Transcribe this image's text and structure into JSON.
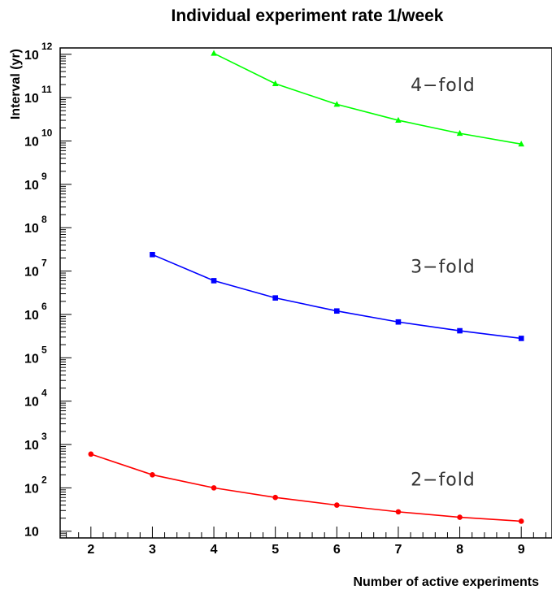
{
  "chart_data": {
    "type": "line",
    "title": "Individual experiment rate 1/week",
    "xlabel": "Number of active experiments",
    "ylabel": "Interval (yr)",
    "xlim": [
      1.5,
      9.5
    ],
    "ylim": [
      7,
      1400000000000.0
    ],
    "log_y": true,
    "x_ticks": [
      "2",
      "3",
      "4",
      "5",
      "6",
      "7",
      "8",
      "9"
    ],
    "y_ticks": [
      {
        "base": "10",
        "exp": ""
      },
      {
        "base": "10",
        "exp": "2"
      },
      {
        "base": "10",
        "exp": "3"
      },
      {
        "base": "10",
        "exp": "4"
      },
      {
        "base": "10",
        "exp": "5"
      },
      {
        "base": "10",
        "exp": "6"
      },
      {
        "base": "10",
        "exp": "7"
      },
      {
        "base": "10",
        "exp": "8"
      },
      {
        "base": "10",
        "exp": "9"
      },
      {
        "base": "10",
        "exp": "10"
      },
      {
        "base": "10",
        "exp": "11"
      },
      {
        "base": "10",
        "exp": "12"
      }
    ],
    "grid": false,
    "series": [
      {
        "color": "#ff0000",
        "marker": "circle",
        "x": [
          2,
          3,
          4,
          5,
          6,
          7,
          8,
          9
        ],
        "y": [
          600,
          200,
          100,
          60,
          40,
          28,
          21,
          17
        ]
      },
      {
        "color": "#0000ff",
        "marker": "square",
        "x": [
          3,
          4,
          5,
          6,
          7,
          8,
          9
        ],
        "y": [
          24000000.0,
          6000000.0,
          2400000.0,
          1200000.0,
          670000.0,
          420000.0,
          280000.0
        ]
      },
      {
        "color": "#00ff00",
        "marker": "triangle",
        "x": [
          4,
          5,
          6,
          7,
          8,
          9
        ],
        "y": [
          1050000000000.0,
          210000000000.0,
          70000000000.0,
          30000000000.0,
          15000000000.0,
          8500000000.0
        ]
      }
    ],
    "annotations": [
      {
        "text": "4−fold",
        "x": 7.2,
        "y": 200000000000.0
      },
      {
        "text": "3−fold",
        "x": 7.2,
        "y": 13000000.0
      },
      {
        "text": "2−fold",
        "x": 7.2,
        "y": 160.0
      }
    ]
  }
}
